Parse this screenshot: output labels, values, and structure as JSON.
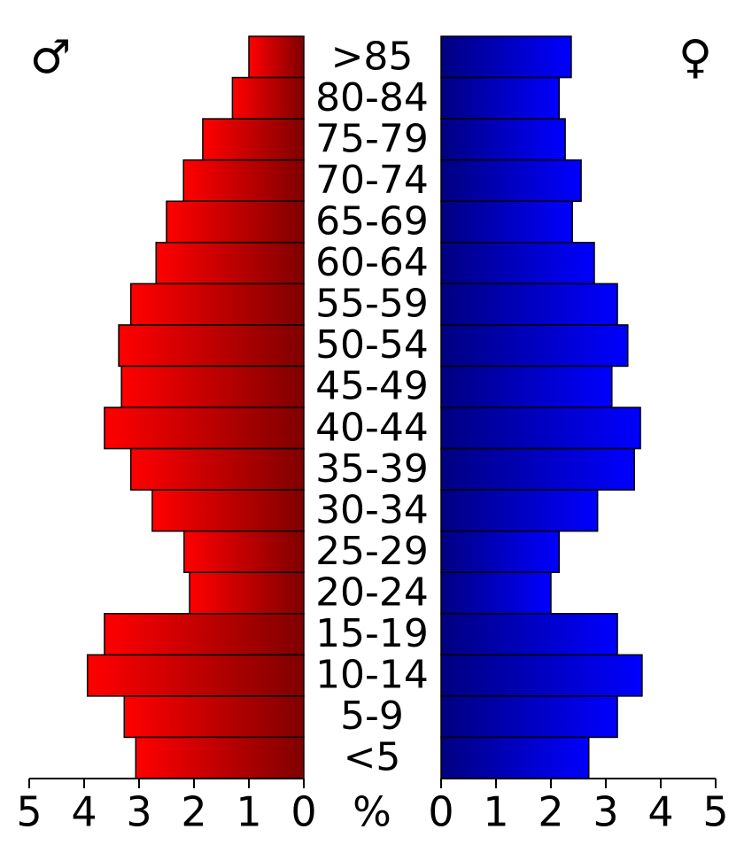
{
  "chart_data": {
    "type": "pyramid",
    "categories": [
      ">85",
      "80-84",
      "75-79",
      "70-74",
      "65-69",
      "60-64",
      "55-59",
      "50-54",
      "45-49",
      "40-44",
      "35-39",
      "30-34",
      "25-29",
      "20-24",
      "15-19",
      "10-14",
      "5-9",
      "<5"
    ],
    "series": [
      {
        "name": "♂",
        "color": "#ff0000",
        "values": [
          1.0,
          1.3,
          1.84,
          2.19,
          2.5,
          2.69,
          3.15,
          3.37,
          3.32,
          3.63,
          3.15,
          2.76,
          2.18,
          2.08,
          3.63,
          3.94,
          3.27,
          3.06
        ]
      },
      {
        "name": "♀",
        "color": "#0000ff",
        "values": [
          2.37,
          2.15,
          2.26,
          2.55,
          2.39,
          2.79,
          3.21,
          3.4,
          3.11,
          3.63,
          3.52,
          2.85,
          2.15,
          2.0,
          3.21,
          3.66,
          3.21,
          2.69
        ]
      }
    ],
    "xlabel": "%",
    "xlim": [
      0,
      5
    ],
    "xticks": [
      0,
      1,
      2,
      3,
      4,
      5
    ]
  }
}
